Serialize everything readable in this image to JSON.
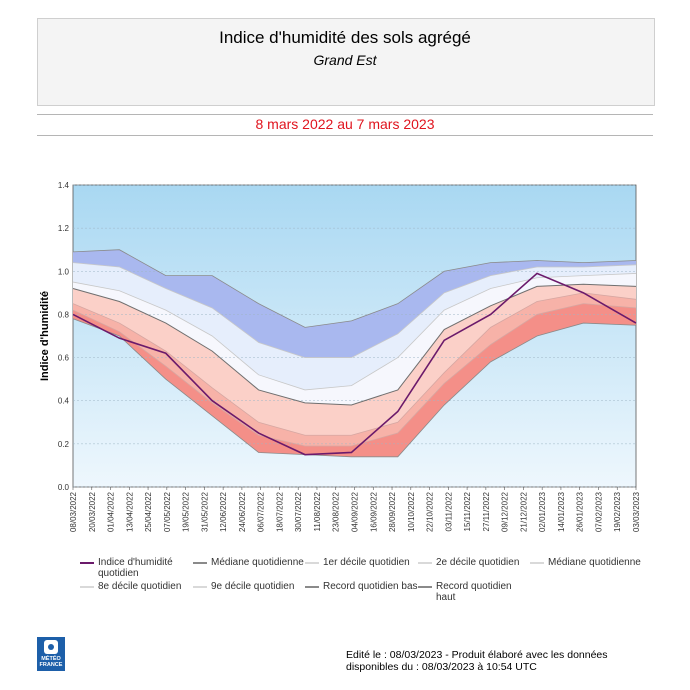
{
  "header": {
    "title": "Indice d'humidité des sols agrégé",
    "subtitle": "Grand Est",
    "period": "8 mars 2022 au 7 mars 2023"
  },
  "legend": [
    {
      "label": "Indice d'humidité quotidien",
      "color": "#6b1a6b"
    },
    {
      "label": "Médiane quotidienne",
      "color": "#8a8a8a"
    },
    {
      "label": "1er décile quotidien",
      "color": "#d9d9d9"
    },
    {
      "label": "2e décile quotidien",
      "color": "#d9d9d9"
    },
    {
      "label": "Médiane quotidienne",
      "color": "#d9d9d9"
    },
    {
      "label": "8e décile quotidien",
      "color": "#d9d9d9"
    },
    {
      "label": "9e décile quotidien",
      "color": "#d9d9d9"
    },
    {
      "label": "Record quotidien bas",
      "color": "#8a8a8a"
    },
    {
      "label": "Record quotidien haut",
      "color": "#8a8a8a"
    }
  ],
  "footer": {
    "line1": "Edité le : 08/03/2023 - Produit élaboré avec les données",
    "line2": "disponibles du : 08/03/2023 à 10:54 UTC"
  },
  "logo": {
    "line1": "MÉTÉO",
    "line2": "FRANCE"
  },
  "colors": {
    "sky_top": "#a9d8f2",
    "sky_bottom": "#eaf5fc",
    "blue_band": "#a9b8ef",
    "light_blue_band": "#e6eefc",
    "pink_band": "#fbd0c8",
    "red_band": "#f48f88",
    "index_line": "#6b1a6b"
  },
  "chart_data": {
    "type": "area",
    "ylabel": "Indice d'humidité",
    "ylim": [
      0.0,
      1.4
    ],
    "yticks": [
      "0.0",
      "0.2",
      "0.4",
      "0.6",
      "0.8",
      "1.0",
      "1.2",
      "1.4"
    ],
    "x_tick_labels": [
      "08/03/2022",
      "20/03/2022",
      "01/04/2022",
      "13/04/2022",
      "25/04/2022",
      "07/05/2022",
      "19/05/2022",
      "31/05/2022",
      "12/06/2022",
      "24/06/2022",
      "06/07/2022",
      "18/07/2022",
      "30/07/2022",
      "11/08/2022",
      "23/08/2022",
      "04/09/2022",
      "16/09/2022",
      "28/09/2022",
      "10/10/2022",
      "22/10/2022",
      "03/11/2022",
      "15/11/2022",
      "27/11/2022",
      "09/12/2022",
      "21/12/2022",
      "02/01/2023",
      "14/01/2023",
      "26/01/2023",
      "07/02/2023",
      "19/02/2023",
      "03/03/2023"
    ],
    "x_dates": [
      "2022-03-08",
      "2022-04-07",
      "2022-05-07",
      "2022-06-06",
      "2022-07-06",
      "2022-08-05",
      "2022-09-04",
      "2022-10-04",
      "2022-11-03",
      "2022-12-03",
      "2023-01-02",
      "2023-02-01",
      "2023-03-07"
    ],
    "series": [
      {
        "key": "record_high",
        "values": [
          1.09,
          1.1,
          0.98,
          0.98,
          0.85,
          0.74,
          0.77,
          0.85,
          1.0,
          1.04,
          1.05,
          1.04,
          1.05
        ]
      },
      {
        "key": "decile9",
        "values": [
          1.04,
          1.02,
          0.92,
          0.83,
          0.67,
          0.6,
          0.6,
          0.71,
          0.9,
          0.98,
          1.02,
          1.02,
          1.03
        ]
      },
      {
        "key": "decile8",
        "values": [
          0.95,
          0.91,
          0.82,
          0.7,
          0.52,
          0.45,
          0.47,
          0.6,
          0.82,
          0.92,
          0.97,
          0.98,
          0.99
        ]
      },
      {
        "key": "median",
        "values": [
          0.92,
          0.86,
          0.76,
          0.63,
          0.45,
          0.39,
          0.38,
          0.45,
          0.73,
          0.84,
          0.93,
          0.94,
          0.93
        ]
      },
      {
        "key": "decile2",
        "values": [
          0.85,
          0.76,
          0.63,
          0.46,
          0.3,
          0.24,
          0.24,
          0.3,
          0.53,
          0.74,
          0.86,
          0.9,
          0.87
        ]
      },
      {
        "key": "decile1",
        "values": [
          0.82,
          0.72,
          0.56,
          0.39,
          0.24,
          0.19,
          0.19,
          0.25,
          0.48,
          0.66,
          0.8,
          0.85,
          0.83
        ]
      },
      {
        "key": "record_low",
        "values": [
          0.78,
          0.7,
          0.5,
          0.33,
          0.16,
          0.15,
          0.14,
          0.14,
          0.38,
          0.58,
          0.7,
          0.76,
          0.75
        ]
      },
      {
        "name": "Indice d'humidité quotidien",
        "key": "index",
        "values": [
          0.8,
          0.69,
          0.62,
          0.4,
          0.25,
          0.15,
          0.16,
          0.35,
          0.68,
          0.8,
          0.99,
          0.9,
          0.76
        ]
      }
    ]
  }
}
